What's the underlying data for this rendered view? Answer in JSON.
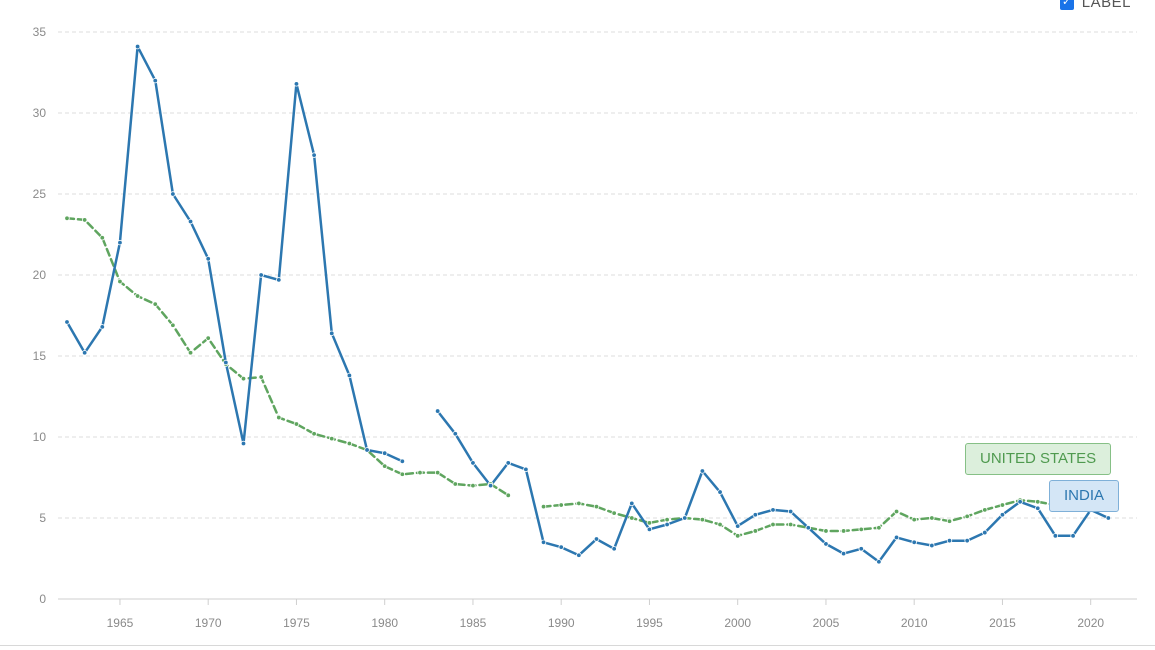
{
  "legend_toggle": {
    "label": "LABEL",
    "checked": true
  },
  "chart_data": {
    "type": "line",
    "title": "",
    "xlabel": "",
    "ylabel": "",
    "xlim": [
      1962,
      2021
    ],
    "ylim": [
      0,
      35
    ],
    "x_ticks": [
      1965,
      1970,
      1975,
      1980,
      1985,
      1990,
      1995,
      2000,
      2005,
      2010,
      2015,
      2020
    ],
    "y_ticks": [
      0,
      5,
      10,
      15,
      20,
      25,
      30,
      35
    ],
    "grid": true,
    "x": [
      1962,
      1963,
      1964,
      1965,
      1966,
      1967,
      1968,
      1969,
      1970,
      1971,
      1972,
      1973,
      1974,
      1975,
      1976,
      1977,
      1978,
      1979,
      1980,
      1981,
      1982,
      1983,
      1984,
      1985,
      1986,
      1987,
      1988,
      1989,
      1990,
      1991,
      1992,
      1993,
      1994,
      1995,
      1996,
      1997,
      1998,
      1999,
      2000,
      2001,
      2002,
      2003,
      2004,
      2005,
      2006,
      2007,
      2008,
      2009,
      2010,
      2011,
      2012,
      2013,
      2014,
      2015,
      2016,
      2017,
      2018,
      2019,
      2020,
      2021
    ],
    "series": [
      {
        "name": "INDIA",
        "color": "#2c77b0",
        "style": "solid",
        "values": [
          17.1,
          15.2,
          16.8,
          22.0,
          34.1,
          32.0,
          25.0,
          23.3,
          21.0,
          14.6,
          9.6,
          20.0,
          19.7,
          31.8,
          27.4,
          16.4,
          13.8,
          9.2,
          9.0,
          8.5,
          null,
          11.6,
          10.2,
          8.4,
          7.0,
          8.4,
          8.0,
          3.5,
          3.2,
          2.7,
          3.7,
          3.1,
          5.9,
          4.3,
          4.6,
          5.0,
          7.9,
          6.6,
          4.5,
          5.2,
          5.5,
          5.4,
          4.4,
          3.4,
          2.8,
          3.1,
          2.3,
          3.8,
          3.5,
          3.3,
          3.6,
          3.6,
          4.1,
          5.2,
          6.0,
          5.6,
          3.9,
          3.9,
          5.5,
          5.0
        ]
      },
      {
        "name": "UNITED STATES",
        "color": "#5fa55f",
        "style": "dashed",
        "values": [
          23.5,
          23.4,
          22.3,
          19.6,
          18.7,
          18.2,
          16.9,
          15.2,
          16.1,
          14.5,
          13.6,
          13.7,
          11.2,
          10.8,
          10.2,
          9.9,
          9.6,
          9.2,
          8.2,
          7.7,
          7.8,
          7.8,
          7.1,
          7.0,
          7.1,
          6.4,
          null,
          5.7,
          5.8,
          5.9,
          5.7,
          5.3,
          5.0,
          4.7,
          4.9,
          5.0,
          4.9,
          4.6,
          3.9,
          4.2,
          4.6,
          4.6,
          4.4,
          4.2,
          4.2,
          4.3,
          4.4,
          5.4,
          4.9,
          5.0,
          4.8,
          5.1,
          5.5,
          5.8,
          6.1,
          6.0,
          5.8,
          null,
          null,
          null
        ]
      }
    ]
  }
}
